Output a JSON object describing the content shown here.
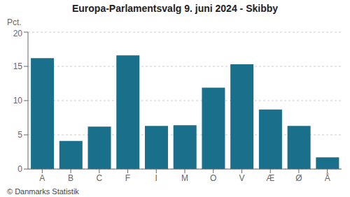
{
  "chart_data": {
    "type": "bar",
    "title": "Europa-Parlamentsvalg 9. juni 2024 - Skibby",
    "ylabel": "Pct.",
    "annotations": [
      "© Danmarks Statistik"
    ],
    "categories": [
      "A",
      "B",
      "C",
      "F",
      "I",
      "M",
      "O",
      "V",
      "Æ",
      "Ø",
      "Å"
    ],
    "values": [
      16.2,
      4.1,
      6.2,
      16.6,
      6.3,
      6.4,
      11.9,
      15.3,
      8.7,
      6.3,
      1.7
    ],
    "color": "#1a6f8a",
    "ylim": [
      0,
      20
    ],
    "yticks": [
      0,
      5,
      10,
      15,
      20
    ],
    "grid": true
  }
}
